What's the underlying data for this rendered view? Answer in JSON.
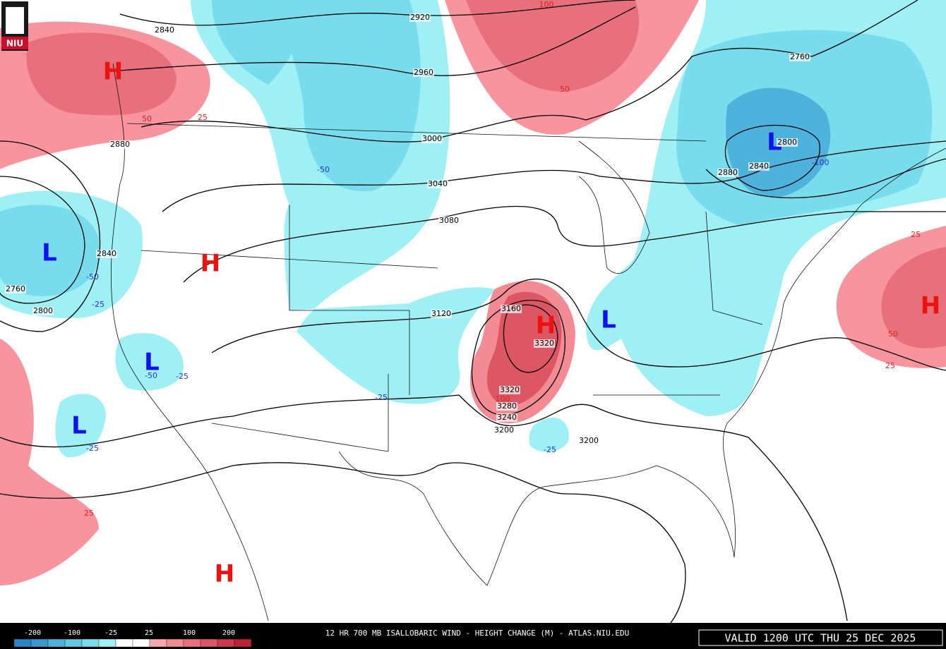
{
  "logo": "NIU",
  "map": {
    "centers": [
      "H",
      "H",
      "H",
      "H",
      "H",
      "L",
      "L",
      "L",
      "L",
      "L"
    ],
    "contour_labels": [
      2840,
      2920,
      2960,
      3000,
      3040,
      3080,
      3120,
      3160,
      3200,
      3200,
      3320,
      3320,
      3280,
      3240,
      2760,
      2800,
      2840,
      2880,
      2880,
      2840,
      2760,
      2800
    ],
    "change_labels": [
      -50,
      -100,
      -50,
      -25,
      -50,
      -25,
      -25,
      -25,
      -25,
      25,
      50,
      50,
      100,
      25,
      50,
      25,
      25,
      100
    ]
  },
  "colorbar": {
    "labels": [
      -200,
      -100,
      -25,
      25,
      100,
      200
    ],
    "colors": [
      "#2a86c4",
      "#3a9ad0",
      "#4db3dc",
      "#62c8e4",
      "#79dcec",
      "#9ff0f5",
      "#ffffff",
      "#ffffff",
      "#f9a6ae",
      "#f38b95",
      "#e8707c",
      "#dc5664",
      "#cc3a4a",
      "#b82234"
    ]
  },
  "footer": {
    "title": "12 HR 700 MB ISALLOBARIC WIND - HEIGHT CHANGE (M) - ATLAS.NIU.EDU",
    "valid": "VALID 1200 UTC THU 25 DEC 2025"
  }
}
